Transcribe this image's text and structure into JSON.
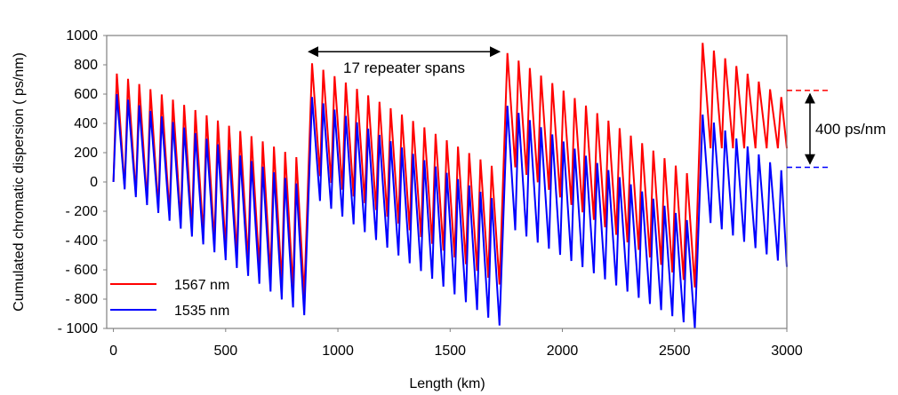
{
  "chart_data": {
    "type": "line",
    "xlabel": "Length  (km)",
    "ylabel": "Cumulated chromatic   dispersion ( ps/nm)",
    "xlim": [
      -30,
      3000
    ],
    "ylim": [
      -1000,
      1000
    ],
    "x_ticks": [
      {
        "value": 0,
        "label": "0"
      },
      {
        "value": 500,
        "label": "500"
      },
      {
        "value": 1000,
        "label": "1000"
      },
      {
        "value": 1500,
        "label": "1500"
      },
      {
        "value": 2000,
        "label": "2000"
      },
      {
        "value": 2500,
        "label": "2500"
      },
      {
        "value": 3000,
        "label": "3000"
      }
    ],
    "y_ticks": [
      {
        "value": 1000,
        "label": "1000"
      },
      {
        "value": 800,
        "label": "800"
      },
      {
        "value": 600,
        "label": "600"
      },
      {
        "value": 400,
        "label": "400"
      },
      {
        "value": 200,
        "label": "200"
      },
      {
        "value": 0,
        "label": "0"
      },
      {
        "value": -200,
        "label": "- 200"
      },
      {
        "value": -400,
        "label": "- 400"
      },
      {
        "value": -600,
        "label": "- 600"
      },
      {
        "value": -800,
        "label": "- 800"
      },
      {
        "value": -1000,
        "label": "- 1000"
      }
    ],
    "grid": false,
    "legend_position": "bottom-left",
    "series": [
      {
        "name": "1567 nm",
        "color": "#ff0000",
        "sawtooth": {
          "span_km": 50,
          "sections": [
            {
              "x_start": 0,
              "x_end": 850,
              "peak_start": 740,
              "peak_end": 170,
              "trough_start": -40,
              "trough_end": -780
            },
            {
              "x_start": 870,
              "x_end": 1720,
              "peak_start": 810,
              "peak_end": 110,
              "trough_start": 40,
              "trough_end": -700
            },
            {
              "x_start": 1740,
              "x_end": 2590,
              "peak_start": 880,
              "peak_end": 60,
              "trough_start": 100,
              "trough_end": -720
            },
            {
              "x_start": 2610,
              "x_end": 3000,
              "peak_start": 950,
              "peak_end": 580,
              "trough_start": 230,
              "trough_end": 230
            }
          ]
        }
      },
      {
        "name": "1535 nm",
        "color": "#0000ff",
        "sawtooth": {
          "span_km": 50,
          "sections": [
            {
              "x_start": 0,
              "x_end": 850,
              "peak_start": 600,
              "peak_end": -10,
              "trough_start": -50,
              "trough_end": -910
            },
            {
              "x_start": 870,
              "x_end": 1720,
              "peak_start": 580,
              "peak_end": -110,
              "trough_start": -130,
              "trough_end": -980
            },
            {
              "x_start": 1740,
              "x_end": 2590,
              "peak_start": 520,
              "peak_end": -260,
              "trough_start": -330,
              "trough_end": -1000
            },
            {
              "x_start": 2610,
              "x_end": 3000,
              "peak_start": 460,
              "peak_end": 80,
              "trough_start": -280,
              "trough_end": -580
            }
          ]
        }
      }
    ],
    "annotations": {
      "spans_label": "17 repeater spans",
      "spans_arrow": {
        "x_start": 870,
        "x_end": 1720,
        "y": 920
      },
      "dispersion_label": "400 ps/nm",
      "red_level": 625,
      "blue_level": 100
    }
  }
}
